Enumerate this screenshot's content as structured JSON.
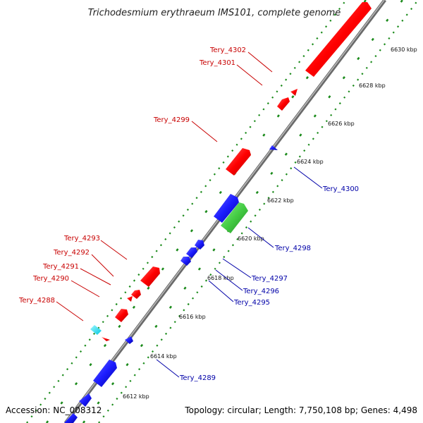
{
  "title": "Trichodesmium erythraeum IMS101, complete genome",
  "footer": {
    "accession": "Accession: NC_008312",
    "summary": "Topology: circular; Length: 7,750,108 bp; Genes: 4,498"
  },
  "colors": {
    "forward": "#ff0000",
    "reverse": "#1c1cff",
    "rna": "#44cc44",
    "misc": "#00e0ff",
    "backbone": "#8a8a8a",
    "ticks": "#1a8a1a",
    "label_red": "#c80000",
    "label_blue": "#0000a8"
  },
  "scale": {
    "ticks": [
      {
        "label": "6612 kbp"
      },
      {
        "label": "6614 kbp"
      },
      {
        "label": "6616 kbp"
      },
      {
        "label": "6618 kbp"
      },
      {
        "label": "6620 kbp"
      },
      {
        "label": "6622 kbp"
      },
      {
        "label": "6624 kbp"
      },
      {
        "label": "6626 kbp"
      },
      {
        "label": "6628 kbp"
      },
      {
        "label": "6630 kbp"
      }
    ]
  },
  "genes_forward": [
    {
      "label": "Tery_4302"
    },
    {
      "label": "Tery_4301"
    },
    {
      "label": "Tery_4299"
    },
    {
      "label": "Tery_4293"
    },
    {
      "label": "Tery_4292"
    },
    {
      "label": "Tery_4291"
    },
    {
      "label": "Tery_4290"
    },
    {
      "label": "Tery_4288"
    }
  ],
  "genes_reverse": [
    {
      "label": "Tery_4300"
    },
    {
      "label": "Tery_4298"
    },
    {
      "label": "Tery_4297"
    },
    {
      "label": "Tery_4296"
    },
    {
      "label": "Tery_4295"
    },
    {
      "label": "Tery_4289"
    }
  ]
}
